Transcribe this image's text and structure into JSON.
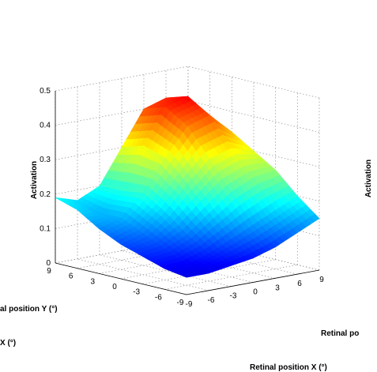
{
  "chart_data": {
    "type": "surface",
    "zlabel": "Activation",
    "xlabel": "Retinal position X (°)",
    "ylabel_visible": "al position Y (°)",
    "xlabel_cut": "X (°)",
    "right_panel_zlabel": "Activation",
    "right_panel_xlabel": "Retinal po",
    "xlim": [
      -9,
      9
    ],
    "ylim": [
      -9,
      9
    ],
    "zlim": [
      0,
      0.5
    ],
    "x_ticks": [
      "-9",
      "-6",
      "-3",
      "0",
      "3",
      "6",
      "9"
    ],
    "y_ticks": [
      "9",
      "6",
      "3",
      "0",
      "-3",
      "-6",
      "-9"
    ],
    "z_ticks": [
      "0",
      "0.1",
      "0.2",
      "0.3",
      "0.4",
      "0.5"
    ],
    "x": [
      -9,
      -6,
      -3,
      0,
      3,
      6,
      9
    ],
    "y": [
      -9,
      -6,
      -3,
      0,
      3,
      6,
      9
    ],
    "z_rows_by_y": [
      [
        0.05,
        0.05,
        0.06,
        0.07,
        0.09,
        0.12,
        0.15
      ],
      [
        0.06,
        0.06,
        0.08,
        0.11,
        0.14,
        0.17,
        0.2
      ],
      [
        0.08,
        0.09,
        0.12,
        0.17,
        0.22,
        0.25,
        0.26
      ],
      [
        0.1,
        0.12,
        0.17,
        0.24,
        0.3,
        0.32,
        0.3
      ],
      [
        0.13,
        0.15,
        0.21,
        0.3,
        0.38,
        0.4,
        0.34
      ],
      [
        0.17,
        0.15,
        0.2,
        0.32,
        0.42,
        0.44,
        0.36
      ],
      [
        0.19,
        0.17,
        0.2,
        0.3,
        0.4,
        0.42,
        0.35
      ]
    ],
    "colormap": "jet",
    "grid": true
  }
}
